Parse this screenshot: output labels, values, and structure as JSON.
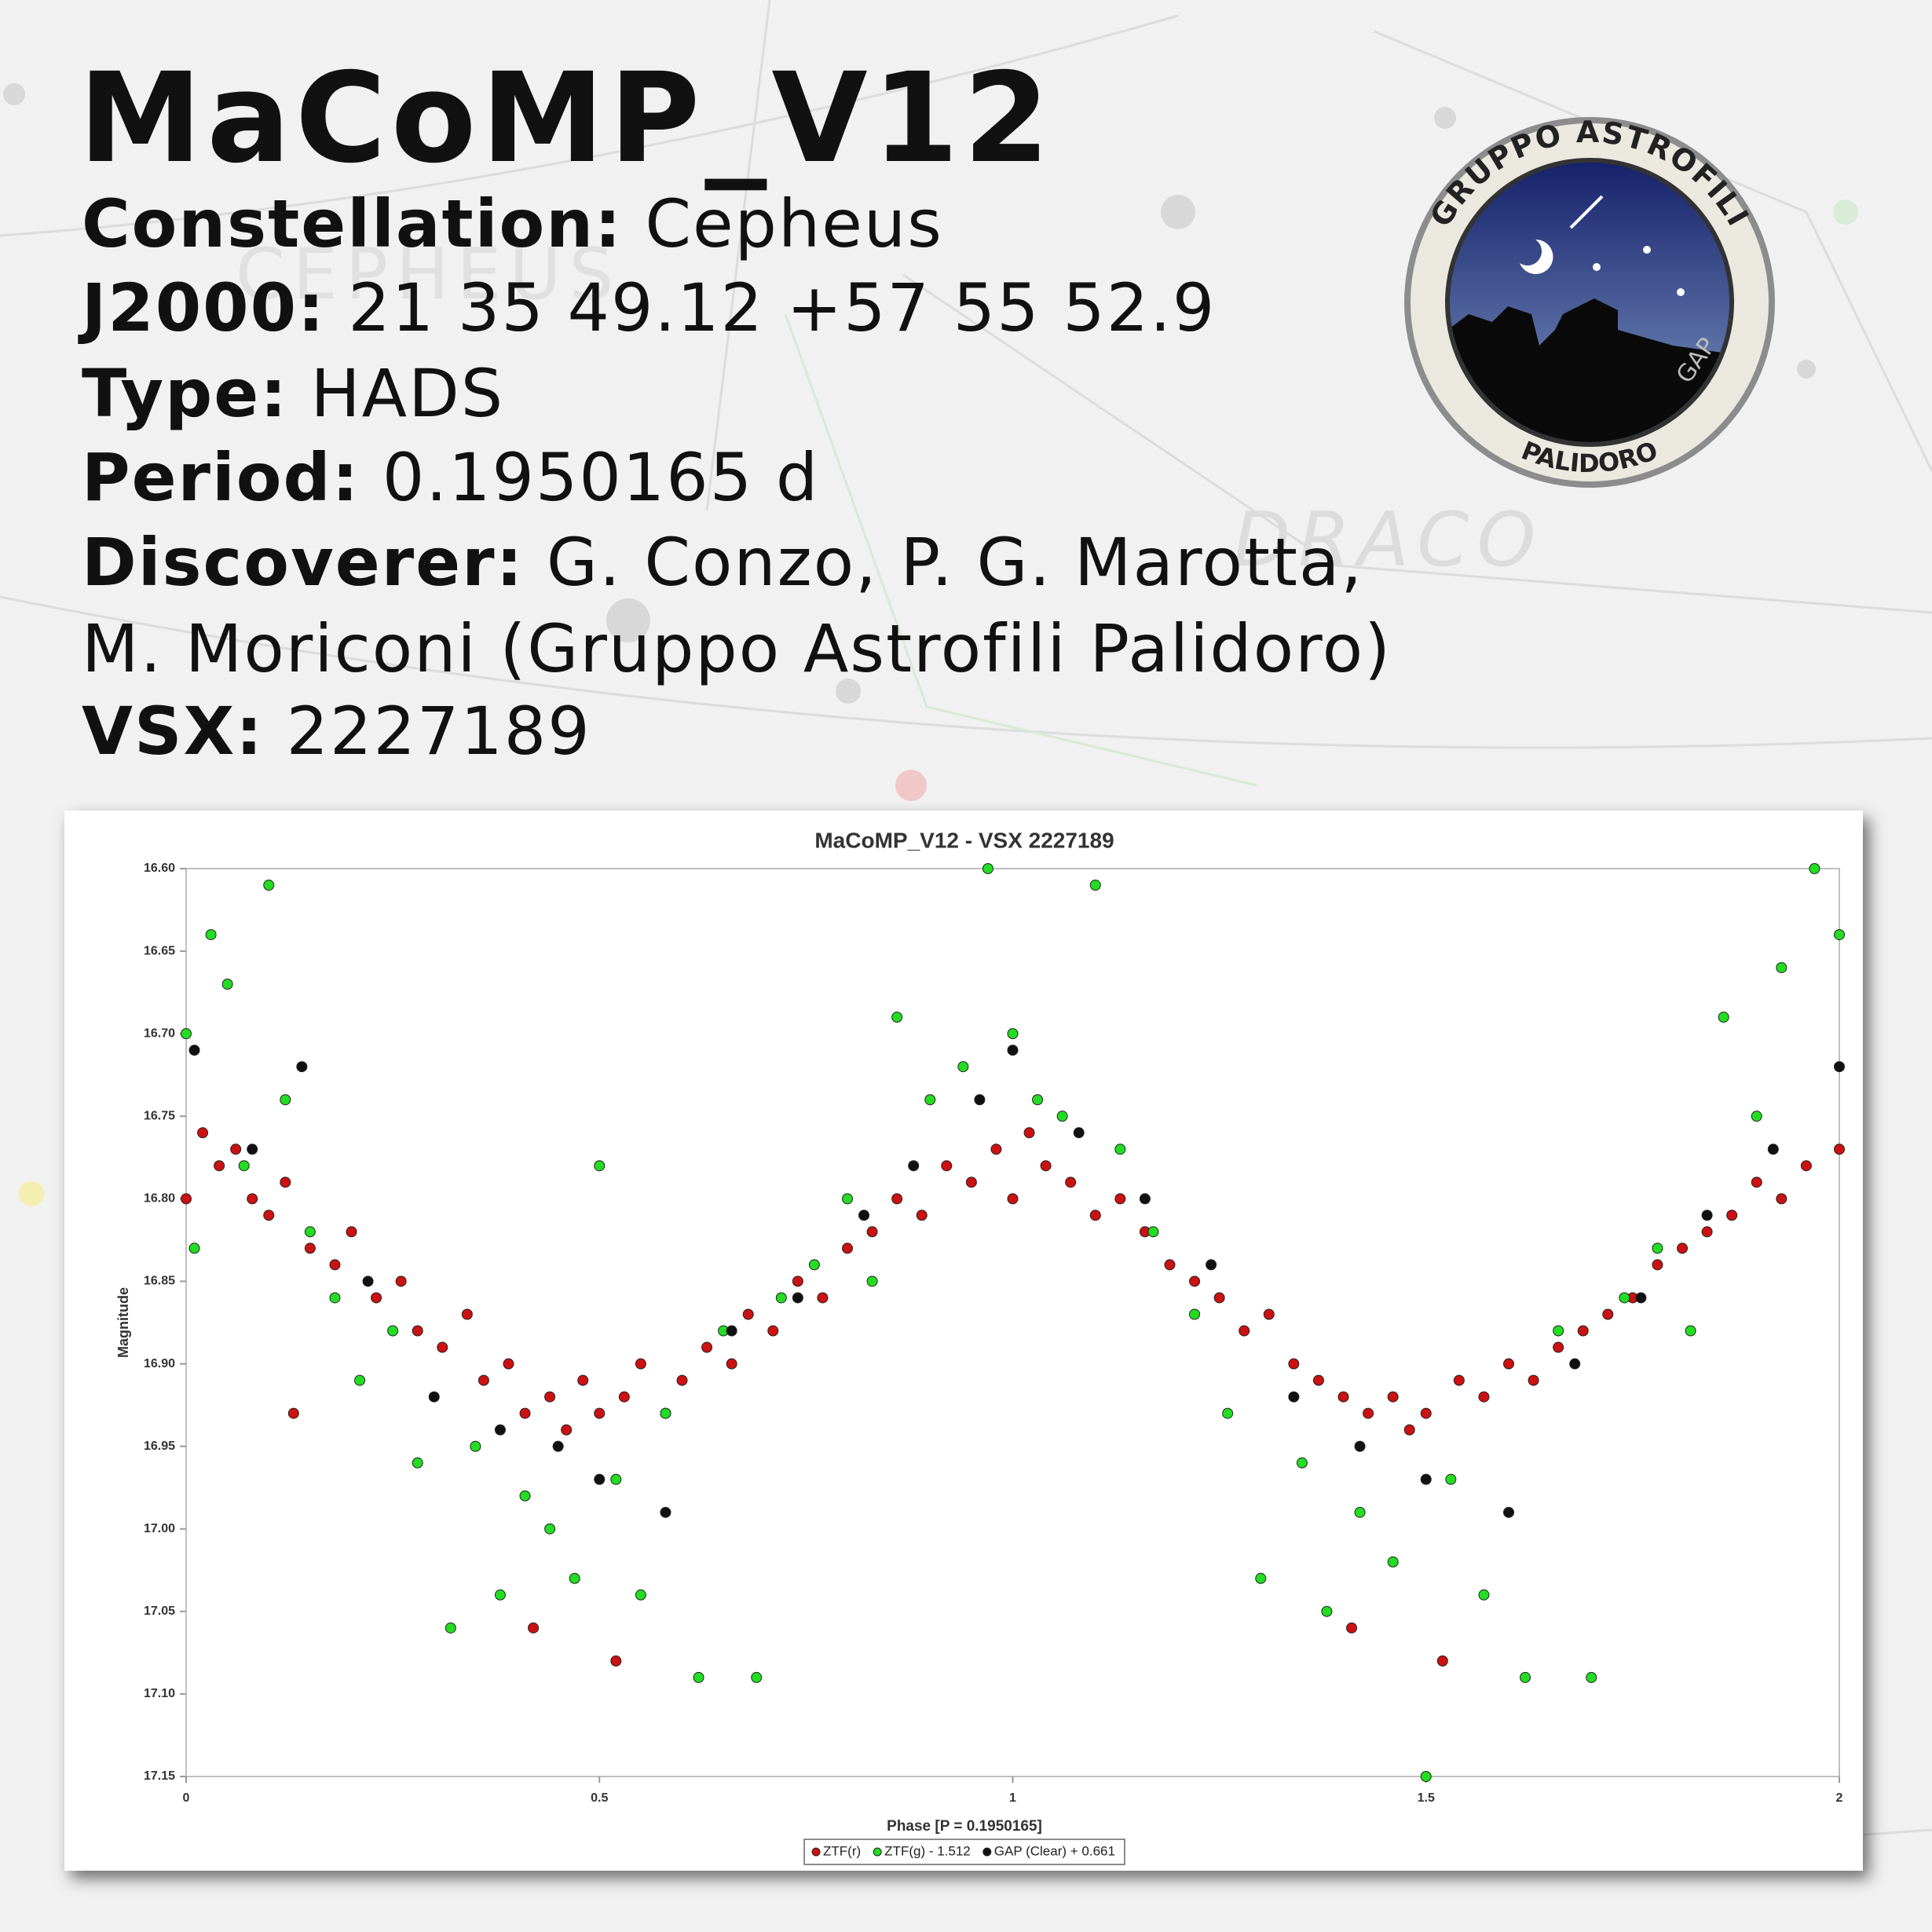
{
  "header": {
    "title": "MaCoMP_V12",
    "fields": [
      {
        "label": "Constellation:",
        "value": "Cepheus"
      },
      {
        "label": "J2000:",
        "value": "21 35 49.12 +57 55 52.9"
      },
      {
        "label": "Type:",
        "value": "HADS"
      },
      {
        "label": "Period:",
        "value": "0.1950165 d"
      },
      {
        "label": "Discoverer:",
        "value": "G. Conzo, P. G. Marotta,",
        "continuation": "M. Moriconi (Gruppo Astrofili Palidoro)"
      },
      {
        "label": "VSX:",
        "value": "2227189"
      }
    ]
  },
  "background": {
    "labels": [
      "CEPHEUS",
      "DRACO"
    ]
  },
  "logo": {
    "top": "GRUPPO ASTROFILI",
    "bottom": "PALIDORO",
    "badge": "GAP"
  },
  "chart_data": {
    "type": "scatter",
    "title": "MaCoMP_V12 - VSX 2227189",
    "x_label": "Phase [P = 0.1950165]",
    "y_label": "Magnitude",
    "xlim": [
      0,
      2
    ],
    "xticks": [
      0,
      0.5,
      1,
      1.5,
      2
    ],
    "ylim": [
      16.6,
      17.15
    ],
    "y_inverted": true,
    "yticks": [
      {
        "value": 16.6,
        "label": "16.60"
      },
      16.65,
      {
        "value": 16.7,
        "label": "16.70"
      },
      16.75,
      {
        "value": 16.8,
        "label": "16.80"
      },
      16.85,
      {
        "value": 16.9,
        "label": "16.90"
      },
      16.95,
      {
        "value": 17,
        "label": "17.00"
      },
      17.05,
      {
        "value": 17.1,
        "label": "17.10"
      },
      17.15
    ],
    "grid": false,
    "legend": "bottom",
    "series": [
      {
        "name": "ZTF(r)",
        "color": "#cc1111",
        "x": [
          0.0,
          0.02,
          0.04,
          0.06,
          0.08,
          0.1,
          0.12,
          0.13,
          0.15,
          0.18,
          0.2,
          0.23,
          0.26,
          0.28,
          0.31,
          0.34,
          0.36,
          0.39,
          0.41,
          0.42,
          0.44,
          0.46,
          0.48,
          0.5,
          0.52,
          0.53,
          0.55,
          0.58,
          0.6,
          0.63,
          0.66,
          0.68,
          0.71,
          0.74,
          0.77,
          0.8,
          0.83,
          0.86,
          0.89,
          0.92,
          0.95,
          0.98,
          1.0,
          1.02,
          1.04,
          1.07,
          1.1,
          1.13,
          1.16,
          1.19,
          1.22,
          1.25,
          1.28,
          1.31,
          1.34,
          1.37,
          1.4,
          1.41,
          1.43,
          1.46,
          1.48,
          1.5,
          1.52,
          1.54,
          1.57,
          1.6,
          1.63,
          1.66,
          1.69,
          1.72,
          1.75,
          1.78,
          1.81,
          1.84,
          1.87,
          1.9,
          1.93,
          1.96,
          2.0
        ],
        "values": [
          16.8,
          16.76,
          16.78,
          16.77,
          16.8,
          16.81,
          16.79,
          16.93,
          16.83,
          16.84,
          16.82,
          16.86,
          16.85,
          16.88,
          16.89,
          16.87,
          16.91,
          16.9,
          16.93,
          17.06,
          16.92,
          16.94,
          16.91,
          16.93,
          17.08,
          16.92,
          16.9,
          16.93,
          16.91,
          16.89,
          16.9,
          16.87,
          16.88,
          16.85,
          16.86,
          16.83,
          16.82,
          16.8,
          16.81,
          16.78,
          16.79,
          16.77,
          16.8,
          16.76,
          16.78,
          16.79,
          16.81,
          16.8,
          16.82,
          16.84,
          16.85,
          16.86,
          16.88,
          16.87,
          16.9,
          16.91,
          16.92,
          17.06,
          16.93,
          16.92,
          16.94,
          16.93,
          17.08,
          16.91,
          16.92,
          16.9,
          16.91,
          16.89,
          16.88,
          16.87,
          16.86,
          16.84,
          16.83,
          16.82,
          16.81,
          16.79,
          16.8,
          16.78,
          16.77
        ]
      },
      {
        "name": "ZTF(g) - 1.512",
        "color": "#22dd22",
        "x": [
          0.0,
          0.01,
          0.03,
          0.05,
          0.07,
          0.1,
          0.12,
          0.15,
          0.18,
          0.21,
          0.25,
          0.28,
          0.32,
          0.35,
          0.38,
          0.41,
          0.44,
          0.47,
          0.5,
          0.52,
          0.55,
          0.58,
          0.62,
          0.65,
          0.69,
          0.72,
          0.76,
          0.8,
          0.83,
          0.86,
          0.9,
          0.94,
          0.97,
          1.0,
          1.03,
          1.06,
          1.1,
          1.13,
          1.17,
          1.22,
          1.26,
          1.3,
          1.35,
          1.38,
          1.42,
          1.46,
          1.5,
          1.53,
          1.57,
          1.62,
          1.66,
          1.7,
          1.74,
          1.78,
          1.82,
          1.86,
          1.9,
          1.93,
          1.97,
          2.0
        ],
        "values": [
          16.7,
          16.83,
          16.64,
          16.67,
          16.78,
          16.61,
          16.74,
          16.82,
          16.86,
          16.91,
          16.88,
          16.96,
          17.06,
          16.95,
          17.04,
          16.98,
          17.0,
          17.03,
          16.78,
          16.97,
          17.04,
          16.93,
          17.09,
          16.88,
          17.09,
          16.86,
          16.84,
          16.8,
          16.85,
          16.69,
          16.74,
          16.72,
          16.6,
          16.7,
          16.74,
          16.75,
          16.61,
          16.77,
          16.82,
          16.87,
          16.93,
          17.03,
          16.96,
          17.05,
          16.99,
          17.02,
          17.15,
          16.97,
          17.04,
          17.09,
          16.88,
          17.09,
          16.86,
          16.83,
          16.88,
          16.69,
          16.75,
          16.66,
          16.6,
          16.64
        ]
      },
      {
        "name": "GAP (Clear) + 0.661",
        "color": "#111111",
        "x": [
          0.01,
          0.08,
          0.14,
          0.22,
          0.3,
          0.38,
          0.45,
          0.5,
          0.58,
          0.66,
          0.74,
          0.82,
          0.88,
          0.96,
          1.0,
          1.08,
          1.16,
          1.24,
          1.34,
          1.42,
          1.5,
          1.6,
          1.68,
          1.76,
          1.84,
          1.92,
          2.0
        ],
        "values": [
          16.71,
          16.77,
          16.72,
          16.85,
          16.92,
          16.94,
          16.95,
          16.97,
          16.99,
          16.88,
          16.86,
          16.81,
          16.78,
          16.74,
          16.71,
          16.76,
          16.8,
          16.84,
          16.92,
          16.95,
          16.97,
          16.99,
          16.9,
          16.86,
          16.81,
          16.77,
          16.72
        ]
      }
    ]
  }
}
